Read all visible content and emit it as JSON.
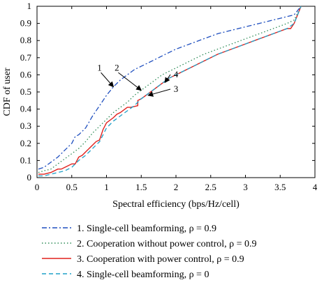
{
  "chart_data": {
    "type": "line",
    "xlabel": "Spectral efficiency (bps/Hz/cell)",
    "ylabel": "CDF of user",
    "xlim": [
      0,
      4
    ],
    "ylim": [
      0,
      1
    ],
    "x_ticks": [
      0,
      0.5,
      1,
      1.5,
      2,
      2.5,
      3,
      3.5,
      4
    ],
    "x_tick_labels": [
      "0",
      "0.5",
      "1",
      "1.5",
      "2",
      "2.5",
      "3",
      "3.5",
      "4"
    ],
    "y_ticks": [
      0,
      0.1,
      0.2,
      0.3,
      0.4,
      0.5,
      0.6,
      0.7,
      0.8,
      0.9,
      1
    ],
    "y_tick_labels": [
      "0",
      "0.1",
      "0.2",
      "0.3",
      "0.4",
      "0.5",
      "0.6",
      "0.7",
      "0.8",
      "0.9",
      "1"
    ],
    "grid": false,
    "legend_position": "below-plot",
    "series": [
      {
        "name": "1. Single-cell beamforming, ρ = 0.9",
        "color": "#1f4fbf",
        "style": "dashdot",
        "x": [
          0.02,
          0.1,
          0.2,
          0.3,
          0.4,
          0.5,
          0.55,
          0.6,
          0.7,
          0.8,
          0.9,
          1.0,
          1.1,
          1.2,
          1.3,
          1.4,
          1.5,
          1.6,
          1.7,
          1.8,
          1.9,
          2.0,
          2.2,
          2.4,
          2.6,
          2.8,
          3.0,
          3.2,
          3.4,
          3.6,
          3.7,
          3.8
        ],
        "y": [
          0.05,
          0.06,
          0.09,
          0.12,
          0.16,
          0.2,
          0.24,
          0.25,
          0.29,
          0.36,
          0.42,
          0.48,
          0.53,
          0.57,
          0.6,
          0.63,
          0.65,
          0.67,
          0.69,
          0.71,
          0.73,
          0.75,
          0.78,
          0.81,
          0.84,
          0.86,
          0.88,
          0.9,
          0.92,
          0.94,
          0.95,
          1.0
        ]
      },
      {
        "name": "2. Cooperation without power control, ρ = 0.9",
        "color": "#2e8b57",
        "style": "dotted",
        "x": [
          0.02,
          0.1,
          0.2,
          0.3,
          0.4,
          0.5,
          0.6,
          0.7,
          0.8,
          0.9,
          1.0,
          1.1,
          1.2,
          1.3,
          1.4,
          1.5,
          1.6,
          1.7,
          1.8,
          1.9,
          2.0,
          2.2,
          2.4,
          2.6,
          2.8,
          3.0,
          3.2,
          3.4,
          3.6,
          3.7,
          3.8
        ],
        "y": [
          0.03,
          0.04,
          0.05,
          0.08,
          0.11,
          0.14,
          0.17,
          0.21,
          0.26,
          0.3,
          0.34,
          0.38,
          0.41,
          0.44,
          0.48,
          0.51,
          0.54,
          0.57,
          0.6,
          0.62,
          0.64,
          0.68,
          0.72,
          0.75,
          0.78,
          0.81,
          0.84,
          0.87,
          0.9,
          0.92,
          1.0
        ]
      },
      {
        "name": "3. Cooperation with power control, ρ = 0.9",
        "color": "#e0201c",
        "style": "solid",
        "x": [
          0.02,
          0.1,
          0.2,
          0.3,
          0.35,
          0.4,
          0.5,
          0.55,
          0.6,
          0.65,
          0.7,
          0.8,
          0.85,
          0.9,
          0.95,
          1.0,
          1.1,
          1.15,
          1.2,
          1.3,
          1.35,
          1.45,
          1.45,
          1.5,
          1.6,
          1.7,
          1.8,
          1.9,
          2.0,
          2.2,
          2.4,
          2.6,
          2.8,
          3.0,
          3.2,
          3.4,
          3.6,
          3.65,
          3.7,
          3.8
        ],
        "y": [
          0.02,
          0.02,
          0.03,
          0.05,
          0.05,
          0.06,
          0.08,
          0.08,
          0.12,
          0.13,
          0.15,
          0.19,
          0.21,
          0.22,
          0.28,
          0.32,
          0.35,
          0.37,
          0.38,
          0.41,
          0.41,
          0.42,
          0.45,
          0.46,
          0.49,
          0.52,
          0.55,
          0.58,
          0.6,
          0.64,
          0.68,
          0.72,
          0.75,
          0.78,
          0.81,
          0.84,
          0.87,
          0.87,
          0.9,
          1.0
        ]
      },
      {
        "name": "4. Single-cell beamforming, ρ = 0",
        "color": "#1fa0c8",
        "style": "dashed",
        "x": [
          0.02,
          0.1,
          0.2,
          0.3,
          0.4,
          0.5,
          0.6,
          0.7,
          0.8,
          0.9,
          1.0,
          1.1,
          1.2,
          1.3,
          1.4,
          1.5,
          1.6,
          1.7,
          1.8,
          1.9,
          2.0,
          2.2,
          2.4,
          2.6,
          2.8,
          3.0,
          3.2,
          3.4,
          3.6,
          3.7,
          3.8
        ],
        "y": [
          0.01,
          0.01,
          0.02,
          0.03,
          0.04,
          0.06,
          0.1,
          0.13,
          0.17,
          0.21,
          0.29,
          0.33,
          0.36,
          0.39,
          0.42,
          0.46,
          0.49,
          0.52,
          0.55,
          0.58,
          0.6,
          0.64,
          0.68,
          0.72,
          0.75,
          0.78,
          0.81,
          0.84,
          0.87,
          0.9,
          1.0
        ]
      }
    ],
    "annotations": [
      {
        "label": "1",
        "text_x": 0.9,
        "text_y": 0.625,
        "arrow_x": 1.1,
        "arrow_y": 0.53
      },
      {
        "label": "2",
        "text_x": 1.15,
        "text_y": 0.625,
        "arrow_x": 1.5,
        "arrow_y": 0.51
      },
      {
        "label": "4",
        "text_x": 2.0,
        "text_y": 0.585,
        "arrow_x": 1.84,
        "arrow_y": 0.555
      },
      {
        "label": "3",
        "text_x": 2.0,
        "text_y": 0.5,
        "arrow_x": 1.6,
        "arrow_y": 0.48
      }
    ]
  }
}
